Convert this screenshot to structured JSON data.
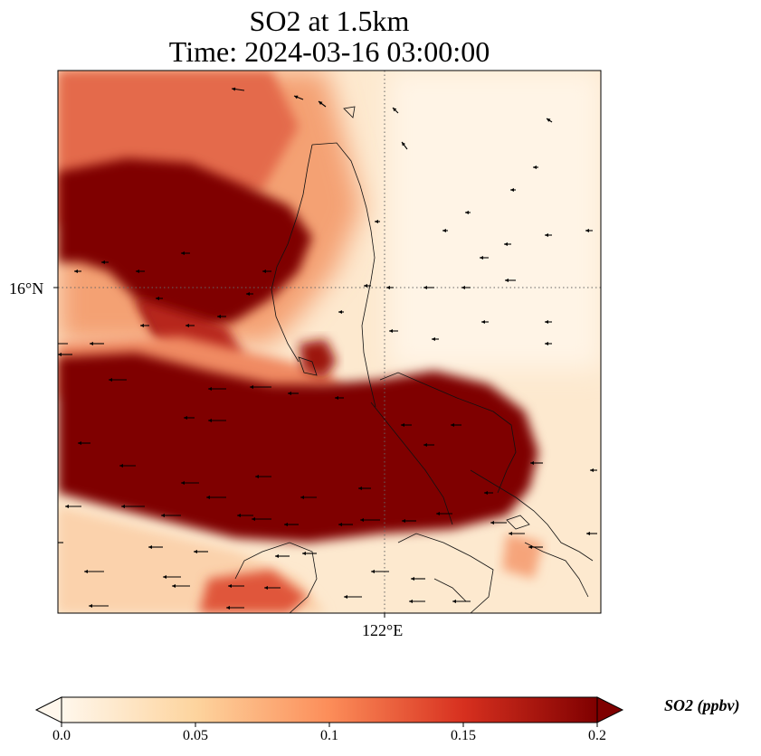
{
  "title_line1": "SO2 at 1.5km",
  "title_line2": "Time: 2024-03-16 03:00:00",
  "map": {
    "lat_tick": "16°N",
    "lon_tick": "122°E",
    "gridline_style": "dotted",
    "colormap": "OrRd"
  },
  "colorbar": {
    "label": "SO2 (ppbv)",
    "min": 0.0,
    "max": 0.2,
    "ticks": [
      "0.0",
      "0.05",
      "0.1",
      "0.15",
      "0.2"
    ],
    "extend": "both",
    "colors": [
      "#fff7ec",
      "#fdd49e",
      "#fc8d59",
      "#d7301f",
      "#7f0000"
    ]
  }
}
